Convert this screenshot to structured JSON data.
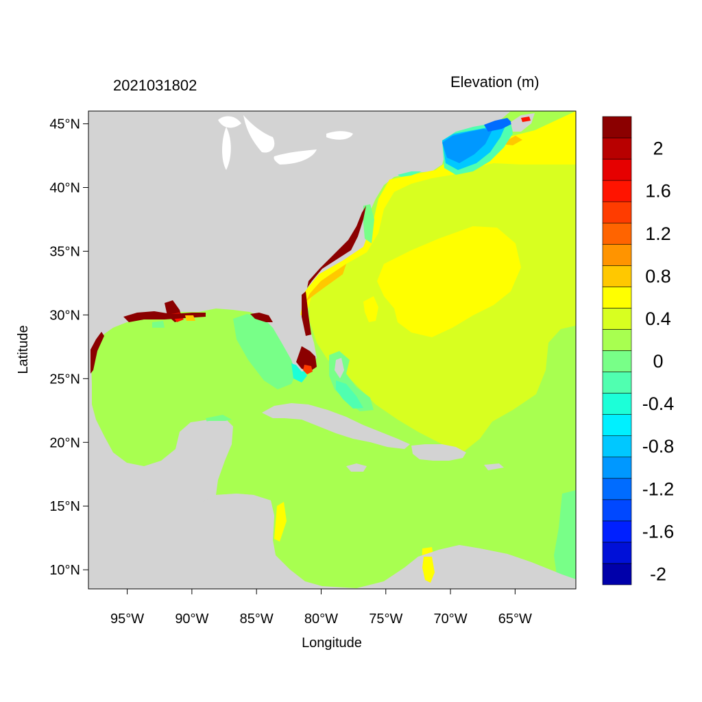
{
  "header": {
    "timestamp": "2021031802",
    "variable_label": "Elevation (m)"
  },
  "axes": {
    "xlabel": "Longitude",
    "ylabel": "Latitude",
    "lon_range": [
      -98,
      -60.3
    ],
    "lat_range": [
      8.5,
      46
    ],
    "x_ticks": [
      {
        "value": -95,
        "label": "95°W"
      },
      {
        "value": -90,
        "label": "90°W"
      },
      {
        "value": -85,
        "label": "85°W"
      },
      {
        "value": -80,
        "label": "80°W"
      },
      {
        "value": -75,
        "label": "75°W"
      },
      {
        "value": -70,
        "label": "70°W"
      },
      {
        "value": -65,
        "label": "65°W"
      }
    ],
    "y_ticks": [
      {
        "value": 45,
        "label": "45°N"
      },
      {
        "value": 40,
        "label": "40°N"
      },
      {
        "value": 35,
        "label": "35°N"
      },
      {
        "value": 30,
        "label": "30°N"
      },
      {
        "value": 25,
        "label": "25°N"
      },
      {
        "value": 20,
        "label": "20°N"
      },
      {
        "value": 15,
        "label": "15°N"
      },
      {
        "value": 10,
        "label": "10°N"
      }
    ]
  },
  "colorbar": {
    "colors": [
      "#0000aa",
      "#0010d8",
      "#0020ff",
      "#0048ff",
      "#006cff",
      "#0098ff",
      "#00c8ff",
      "#00f0ff",
      "#1cffd8",
      "#50ffb0",
      "#78ff88",
      "#a8ff50",
      "#d8ff20",
      "#ffff00",
      "#ffc800",
      "#ff9400",
      "#ff6400",
      "#ff3c00",
      "#ff1400",
      "#e60000",
      "#b80000",
      "#8b0000"
    ],
    "labels": [
      {
        "value": -2,
        "label": "-2"
      },
      {
        "value": -1.6,
        "label": "-1.6"
      },
      {
        "value": -1.2,
        "label": "-1.2"
      },
      {
        "value": -0.8,
        "label": "-0.8"
      },
      {
        "value": -0.4,
        "label": "-0.4"
      },
      {
        "value": 0,
        "label": "0"
      },
      {
        "value": 0.4,
        "label": "0.4"
      },
      {
        "value": 0.8,
        "label": "0.8"
      },
      {
        "value": 1.2,
        "label": "1.2"
      },
      {
        "value": 1.6,
        "label": "1.6"
      },
      {
        "value": 2,
        "label": "2"
      }
    ]
  },
  "map_colors": {
    "land": "#d3d3d3",
    "ocean_base": "#a8ff50",
    "atlantic_high": "#d8ff20",
    "gyre_peak": "#ffff00",
    "surge_max": "#8b0000",
    "gulf_of_maine_low": "#0098ff"
  }
}
